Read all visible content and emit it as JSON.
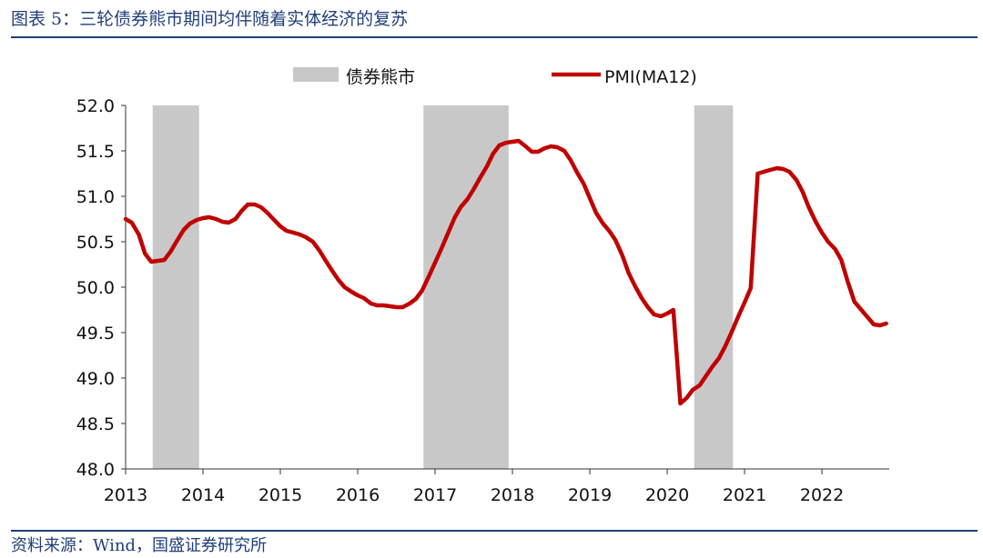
{
  "header": {
    "title": "图表 5：三轮债券熊市期间均伴随着实体经济的复苏"
  },
  "footer": {
    "source": "资料来源：Wind，国盛证券研究所"
  },
  "colors": {
    "accent": "#1f3f7a",
    "line": "#c00000",
    "shade": "#c8c8c8"
  },
  "chart_data": {
    "type": "line",
    "title": "",
    "xlabel": "",
    "ylabel": "",
    "ylim": [
      48.0,
      52.0
    ],
    "y_ticks": [
      "48.0",
      "48.5",
      "49.0",
      "49.5",
      "50.0",
      "50.5",
      "51.0",
      "51.5",
      "52.0"
    ],
    "x_ticks": [
      "2013",
      "2014",
      "2015",
      "2016",
      "2017",
      "2018",
      "2019",
      "2020",
      "2021",
      "2022"
    ],
    "legend": {
      "placement": "top",
      "items": [
        "债券熊市",
        "PMI(MA12)"
      ]
    },
    "bear_markets": [
      {
        "name": "债券熊市",
        "start": 2013.35,
        "end": 2013.95
      },
      {
        "name": "债券熊市",
        "start": 2016.85,
        "end": 2017.95
      },
      {
        "name": "债券熊市",
        "start": 2020.35,
        "end": 2020.85
      }
    ],
    "series": [
      {
        "name": "PMI(MA12)",
        "points": [
          [
            2013.0,
            50.75
          ],
          [
            2013.08,
            50.71
          ],
          [
            2013.17,
            50.58
          ],
          [
            2013.25,
            50.37
          ],
          [
            2013.33,
            50.28
          ],
          [
            2013.42,
            50.29
          ],
          [
            2013.5,
            50.3
          ],
          [
            2013.58,
            50.39
          ],
          [
            2013.67,
            50.52
          ],
          [
            2013.75,
            50.63
          ],
          [
            2013.83,
            50.7
          ],
          [
            2013.92,
            50.74
          ],
          [
            2014.0,
            50.76
          ],
          [
            2014.08,
            50.77
          ],
          [
            2014.17,
            50.75
          ],
          [
            2014.25,
            50.72
          ],
          [
            2014.33,
            50.71
          ],
          [
            2014.42,
            50.75
          ],
          [
            2014.5,
            50.84
          ],
          [
            2014.58,
            50.91
          ],
          [
            2014.67,
            50.91
          ],
          [
            2014.75,
            50.88
          ],
          [
            2014.83,
            50.82
          ],
          [
            2014.92,
            50.74
          ],
          [
            2015.0,
            50.67
          ],
          [
            2015.08,
            50.62
          ],
          [
            2015.17,
            50.6
          ],
          [
            2015.25,
            50.58
          ],
          [
            2015.33,
            50.55
          ],
          [
            2015.42,
            50.5
          ],
          [
            2015.5,
            50.41
          ],
          [
            2015.58,
            50.3
          ],
          [
            2015.67,
            50.18
          ],
          [
            2015.75,
            50.08
          ],
          [
            2015.83,
            50.0
          ],
          [
            2015.92,
            49.95
          ],
          [
            2016.0,
            49.91
          ],
          [
            2016.08,
            49.88
          ],
          [
            2016.17,
            49.82
          ],
          [
            2016.25,
            49.8
          ],
          [
            2016.33,
            49.8
          ],
          [
            2016.42,
            49.79
          ],
          [
            2016.5,
            49.78
          ],
          [
            2016.58,
            49.78
          ],
          [
            2016.67,
            49.82
          ],
          [
            2016.75,
            49.87
          ],
          [
            2016.83,
            49.96
          ],
          [
            2016.92,
            50.12
          ],
          [
            2017.0,
            50.27
          ],
          [
            2017.08,
            50.42
          ],
          [
            2017.17,
            50.6
          ],
          [
            2017.25,
            50.76
          ],
          [
            2017.33,
            50.88
          ],
          [
            2017.42,
            50.97
          ],
          [
            2017.5,
            51.08
          ],
          [
            2017.58,
            51.2
          ],
          [
            2017.67,
            51.33
          ],
          [
            2017.75,
            51.47
          ],
          [
            2017.83,
            51.56
          ],
          [
            2017.92,
            51.59
          ],
          [
            2018.0,
            51.6
          ],
          [
            2018.08,
            51.61
          ],
          [
            2018.17,
            51.55
          ],
          [
            2018.25,
            51.49
          ],
          [
            2018.33,
            51.49
          ],
          [
            2018.42,
            51.53
          ],
          [
            2018.5,
            51.55
          ],
          [
            2018.58,
            51.54
          ],
          [
            2018.67,
            51.5
          ],
          [
            2018.75,
            51.4
          ],
          [
            2018.83,
            51.27
          ],
          [
            2018.92,
            51.14
          ],
          [
            2019.0,
            50.98
          ],
          [
            2019.08,
            50.82
          ],
          [
            2019.17,
            50.7
          ],
          [
            2019.25,
            50.62
          ],
          [
            2019.33,
            50.52
          ],
          [
            2019.42,
            50.35
          ],
          [
            2019.5,
            50.16
          ],
          [
            2019.58,
            50.02
          ],
          [
            2019.67,
            49.88
          ],
          [
            2019.75,
            49.78
          ],
          [
            2019.83,
            49.7
          ],
          [
            2019.92,
            49.68
          ],
          [
            2020.0,
            49.71
          ],
          [
            2020.08,
            49.75
          ],
          [
            2020.17,
            48.72
          ],
          [
            2020.25,
            48.78
          ],
          [
            2020.33,
            48.87
          ],
          [
            2020.42,
            48.92
          ],
          [
            2020.5,
            49.02
          ],
          [
            2020.58,
            49.12
          ],
          [
            2020.67,
            49.22
          ],
          [
            2020.75,
            49.35
          ],
          [
            2020.83,
            49.5
          ],
          [
            2020.92,
            49.68
          ],
          [
            2021.0,
            49.83
          ],
          [
            2021.08,
            49.99
          ],
          [
            2021.17,
            51.25
          ],
          [
            2021.25,
            51.27
          ],
          [
            2021.33,
            51.29
          ],
          [
            2021.42,
            51.31
          ],
          [
            2021.5,
            51.3
          ],
          [
            2021.58,
            51.27
          ],
          [
            2021.67,
            51.18
          ],
          [
            2021.75,
            51.05
          ],
          [
            2021.83,
            50.88
          ],
          [
            2021.92,
            50.72
          ],
          [
            2022.0,
            50.6
          ],
          [
            2022.08,
            50.5
          ],
          [
            2022.17,
            50.42
          ],
          [
            2022.25,
            50.3
          ],
          [
            2022.33,
            50.07
          ],
          [
            2022.42,
            49.84
          ],
          [
            2022.5,
            49.76
          ],
          [
            2022.58,
            49.68
          ],
          [
            2022.67,
            49.59
          ],
          [
            2022.75,
            49.58
          ],
          [
            2022.83,
            49.6
          ]
        ]
      }
    ]
  }
}
